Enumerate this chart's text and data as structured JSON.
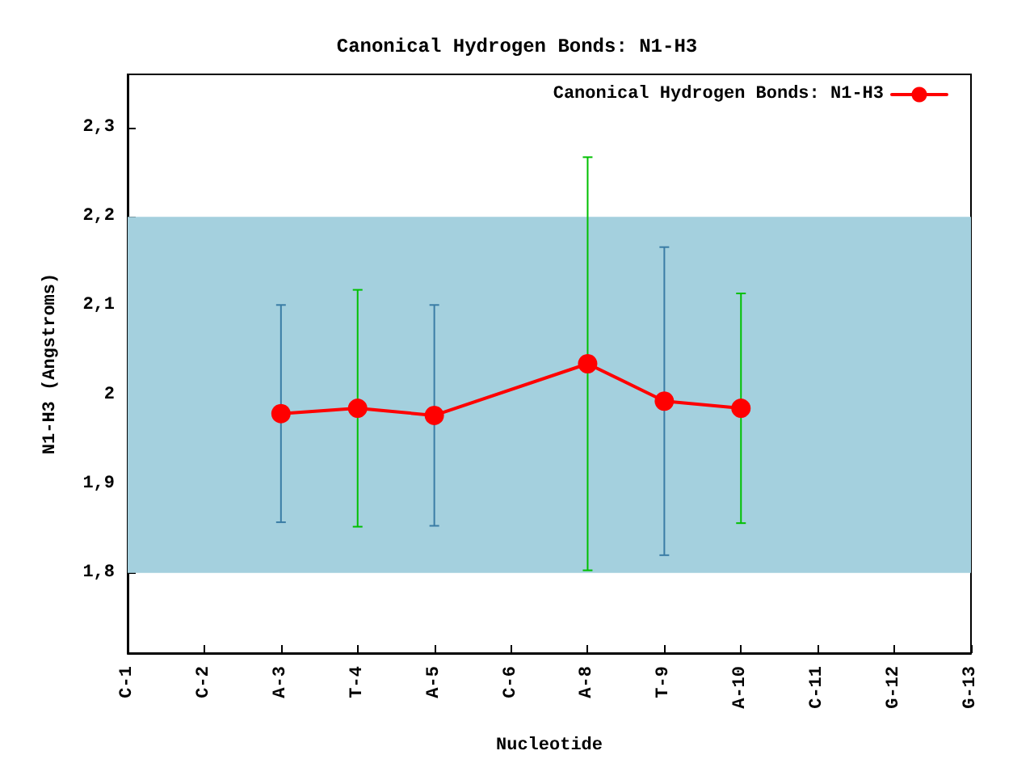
{
  "chart_data": {
    "type": "line",
    "title": "Canonical Hydrogen Bonds: N1-H3",
    "xlabel": "Nucleotide",
    "ylabel": "N1-H3 (Angstroms)",
    "categories": [
      "C-1",
      "C-2",
      "A-3",
      "T-4",
      "A-5",
      "C-6",
      "A-8",
      "T-9",
      "A-10",
      "C-11",
      "G-12",
      "G-13"
    ],
    "series": [
      {
        "name": "Canonical Hydrogen Bonds: N1-H3",
        "color": "#ff0000",
        "values": [
          null,
          null,
          1.979,
          1.985,
          1.977,
          null,
          2.035,
          1.993,
          1.985,
          null,
          null,
          null
        ],
        "errors": [
          null,
          null,
          0.122,
          0.133,
          0.124,
          null,
          0.232,
          0.173,
          0.129,
          null,
          null,
          null
        ]
      }
    ],
    "ylim": [
      1.71,
      2.36
    ],
    "yticks": [
      {
        "value": 1.8,
        "label": "1,8"
      },
      {
        "value": 1.9,
        "label": "1,9"
      },
      2,
      {
        "value": 2.1,
        "label": "2,1"
      },
      {
        "value": 2.2,
        "label": "2,2"
      },
      {
        "value": 2.3,
        "label": "2,3"
      }
    ],
    "bands": [
      {
        "axis": "y",
        "from": 1.8,
        "to": 2.2,
        "color": "#a4d0de"
      }
    ],
    "grid": false,
    "legend": "top right",
    "marker": "circle",
    "line_style": "solid"
  }
}
